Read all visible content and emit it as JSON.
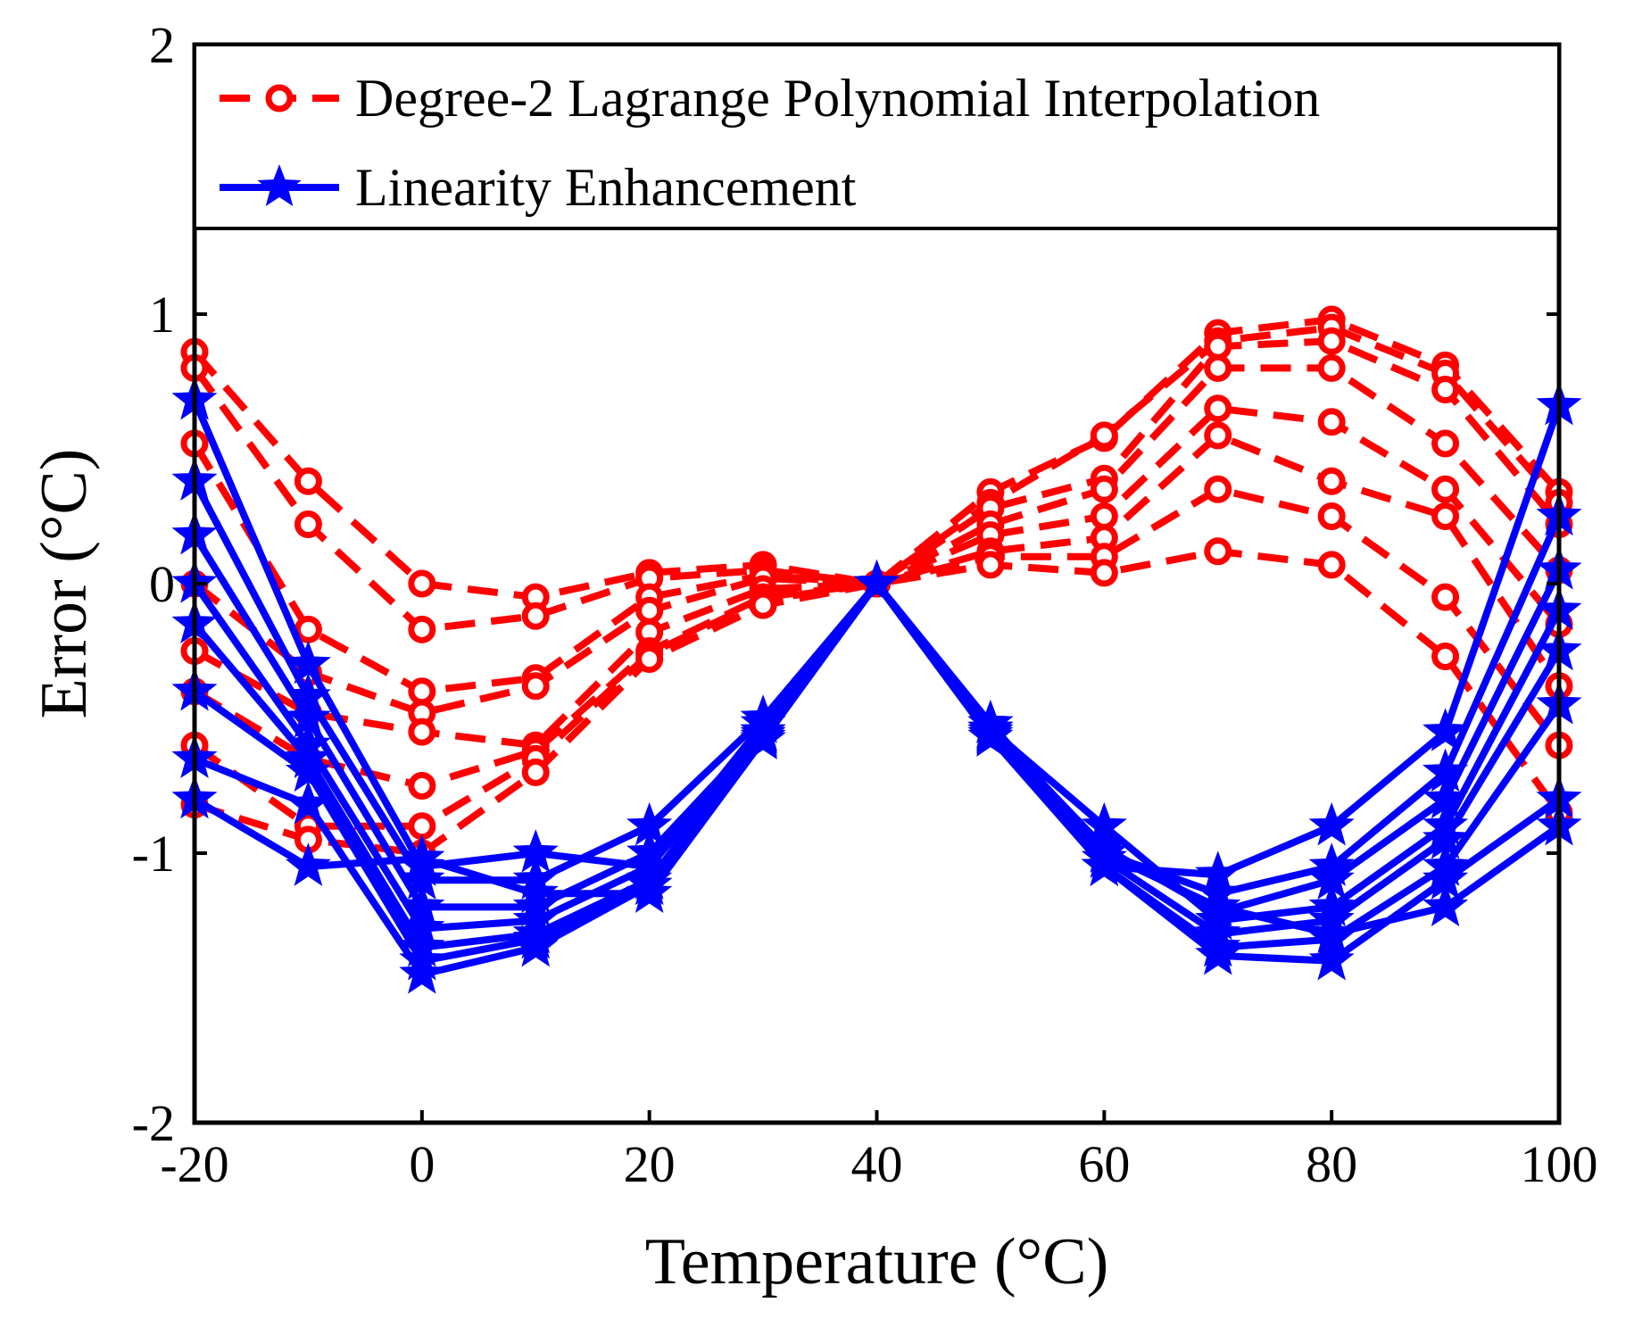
{
  "chart_data": {
    "type": "line",
    "title": "",
    "xlabel": "Temperature (°C)",
    "ylabel": "Error (°C)",
    "xlim": [
      -20,
      100
    ],
    "ylim": [
      -2,
      2
    ],
    "xticks": [
      -20,
      0,
      20,
      40,
      60,
      80,
      100
    ],
    "xtick_labels": [
      "-20",
      "0",
      "20",
      "40",
      "60",
      "80",
      "100"
    ],
    "yticks": [
      -2,
      -1,
      0,
      1,
      2
    ],
    "ytick_labels": [
      "-2",
      "-1",
      "0",
      "1",
      "2"
    ],
    "x": [
      -20,
      -10,
      0,
      10,
      20,
      30,
      40,
      50,
      60,
      70,
      80,
      90,
      100
    ],
    "grid": false,
    "legend_position": "top",
    "groups": [
      {
        "name": "Degree-2 Lagrange Polynomial Interpolation",
        "color": "#ff0000",
        "line_style": "dashed",
        "marker": "circle",
        "series": [
          {
            "values": [
              0.86,
              0.38,
              0.0,
              -0.05,
              0.04,
              0.07,
              0.0,
              0.34,
              0.54,
              0.93,
              0.98,
              0.81,
              0.34
            ]
          },
          {
            "values": [
              0.8,
              0.22,
              -0.17,
              -0.12,
              0.02,
              0.05,
              0.0,
              0.3,
              0.55,
              0.9,
              0.95,
              0.78,
              0.3
            ]
          },
          {
            "values": [
              0.52,
              -0.17,
              -0.4,
              -0.35,
              -0.05,
              0.03,
              0.0,
              0.28,
              0.39,
              0.88,
              0.9,
              0.72,
              0.22
            ]
          },
          {
            "values": [
              0.0,
              -0.33,
              -0.48,
              -0.38,
              -0.1,
              0.02,
              0.0,
              0.22,
              0.35,
              0.8,
              0.8,
              0.52,
              0.05
            ]
          },
          {
            "values": [
              -0.25,
              -0.48,
              -0.55,
              -0.6,
              -0.18,
              -0.02,
              0.0,
              0.18,
              0.25,
              0.65,
              0.6,
              0.35,
              -0.15
            ]
          },
          {
            "values": [
              -0.4,
              -0.65,
              -0.75,
              -0.62,
              -0.25,
              -0.05,
              0.0,
              0.12,
              0.17,
              0.55,
              0.38,
              0.25,
              -0.38
            ]
          },
          {
            "values": [
              -0.6,
              -0.9,
              -0.9,
              -0.65,
              -0.26,
              -0.06,
              0.0,
              0.1,
              0.1,
              0.35,
              0.25,
              -0.05,
              -0.6
            ]
          },
          {
            "values": [
              -0.82,
              -0.95,
              -1.0,
              -0.7,
              -0.28,
              -0.08,
              0.0,
              0.07,
              0.04,
              0.12,
              0.07,
              -0.27,
              -0.85
            ]
          }
        ]
      },
      {
        "name": "Linearity Enhancement",
        "color": "#0000ff",
        "line_style": "solid",
        "marker": "star",
        "series": [
          {
            "values": [
              0.68,
              -0.3,
              -1.05,
              -1.0,
              -1.05,
              -0.52,
              0.0,
              -0.52,
              -1.05,
              -1.08,
              -0.9,
              -0.55,
              0.66
            ]
          },
          {
            "values": [
              0.38,
              -0.42,
              -1.1,
              -1.1,
              -0.9,
              -0.5,
              0.0,
              -0.52,
              -1.0,
              -1.15,
              -1.05,
              -0.7,
              0.25
            ]
          },
          {
            "values": [
              0.18,
              -0.5,
              -1.2,
              -1.2,
              -1.0,
              -0.55,
              0.0,
              -0.54,
              -0.98,
              -1.22,
              -1.1,
              -0.8,
              0.05
            ]
          },
          {
            "values": [
              0.0,
              -0.6,
              -1.28,
              -1.25,
              -1.05,
              -0.55,
              0.0,
              -0.54,
              -0.9,
              -1.25,
              -1.2,
              -0.9,
              -0.1
            ]
          },
          {
            "values": [
              -0.15,
              -0.65,
              -1.35,
              -1.3,
              -1.1,
              -0.56,
              0.0,
              -0.55,
              -1.02,
              -1.3,
              -1.25,
              -0.95,
              -0.25
            ]
          },
          {
            "values": [
              -0.4,
              -0.7,
              -1.4,
              -1.32,
              -1.12,
              -0.57,
              0.0,
              -0.56,
              -1.05,
              -1.35,
              -1.32,
              -1.05,
              -0.45
            ]
          },
          {
            "values": [
              -0.65,
              -0.82,
              -1.45,
              -1.35,
              -1.12,
              -0.58,
              0.0,
              -0.57,
              -1.05,
              -1.38,
              -1.4,
              -1.1,
              -0.8
            ]
          },
          {
            "values": [
              -0.8,
              -1.05,
              -1.02,
              -1.15,
              -1.15,
              -0.58,
              0.0,
              -0.55,
              -1.0,
              -1.2,
              -1.3,
              -1.2,
              -0.9
            ]
          }
        ]
      }
    ]
  }
}
